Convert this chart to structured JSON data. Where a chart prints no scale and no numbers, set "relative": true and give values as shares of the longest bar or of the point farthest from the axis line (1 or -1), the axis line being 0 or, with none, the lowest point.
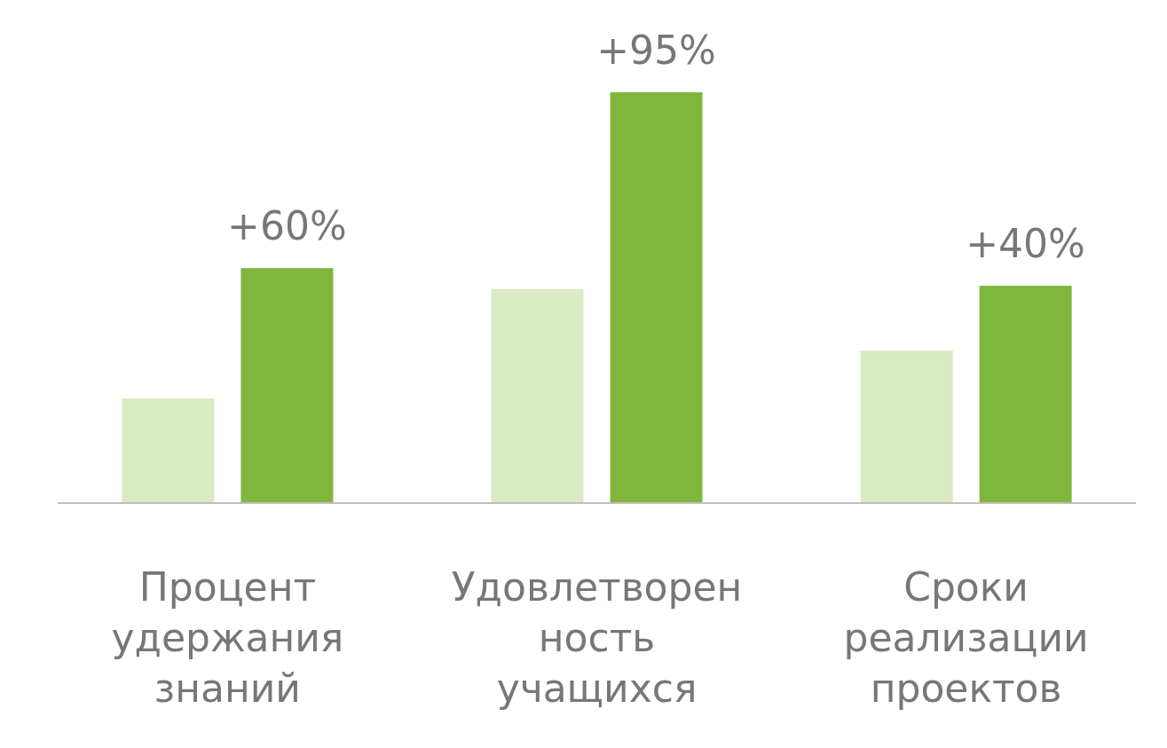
{
  "chart_data": {
    "type": "bar",
    "relative": true,
    "categories": [
      "Процент удержания знаний",
      "Удовлетворенность учащихся",
      "Сроки реализации проектов"
    ],
    "series": [
      {
        "color": "#d9eac4",
        "values": [
          0.255,
          0.521,
          0.371
        ]
      },
      {
        "color": "#7fb73c",
        "values": [
          0.572,
          1,
          0.529
        ]
      }
    ],
    "annotations": [
      "+60%",
      "+95%",
      "+40%"
    ]
  }
}
